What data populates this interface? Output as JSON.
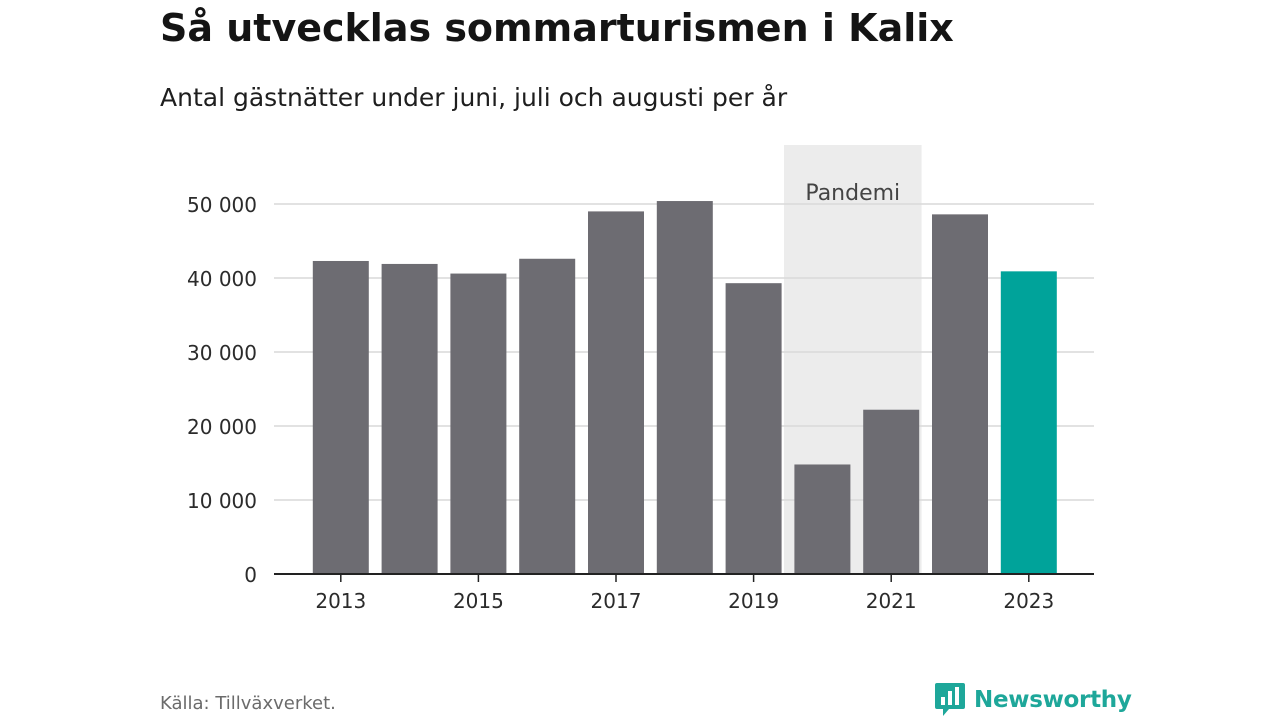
{
  "chart_data": {
    "type": "bar",
    "title": "Så utvecklas sommarturismen i Kalix",
    "subtitle": "Antal gästnätter under juni, juli och augusti per år",
    "categories": [
      "2013",
      "2014",
      "2015",
      "2016",
      "2017",
      "2018",
      "2019",
      "2020",
      "2021",
      "2022",
      "2023"
    ],
    "values": [
      42300,
      41900,
      40600,
      42600,
      49000,
      50400,
      39300,
      14800,
      22200,
      48600,
      40900
    ],
    "x_tick_labels": [
      "2013",
      "2015",
      "2017",
      "2019",
      "2021",
      "2023"
    ],
    "y_tick_labels": [
      "0",
      "10 000",
      "20 000",
      "30 000",
      "40 000",
      "50 000"
    ],
    "y_ticks": [
      0,
      10000,
      20000,
      30000,
      40000,
      50000
    ],
    "ylim": [
      0,
      58000
    ],
    "xlabel": "",
    "ylabel": "",
    "grid": true,
    "highlight_category": "2023",
    "annotation": {
      "label": "Pandemi",
      "from": "2020",
      "to": "2021"
    },
    "colors": {
      "bar": "#6d6c72",
      "highlight": "#00a39a",
      "band": "#ececec",
      "grid": "#d9d9d9",
      "axis": "#222222",
      "tick_text": "#2b2b2b",
      "annotation_text": "#444444"
    }
  },
  "footer": {
    "source": "Källa: Tillväxverket."
  },
  "brand": {
    "name": "Newsworthy",
    "icon": "newsworthy-logo-icon",
    "color": "#1ea79a"
  }
}
